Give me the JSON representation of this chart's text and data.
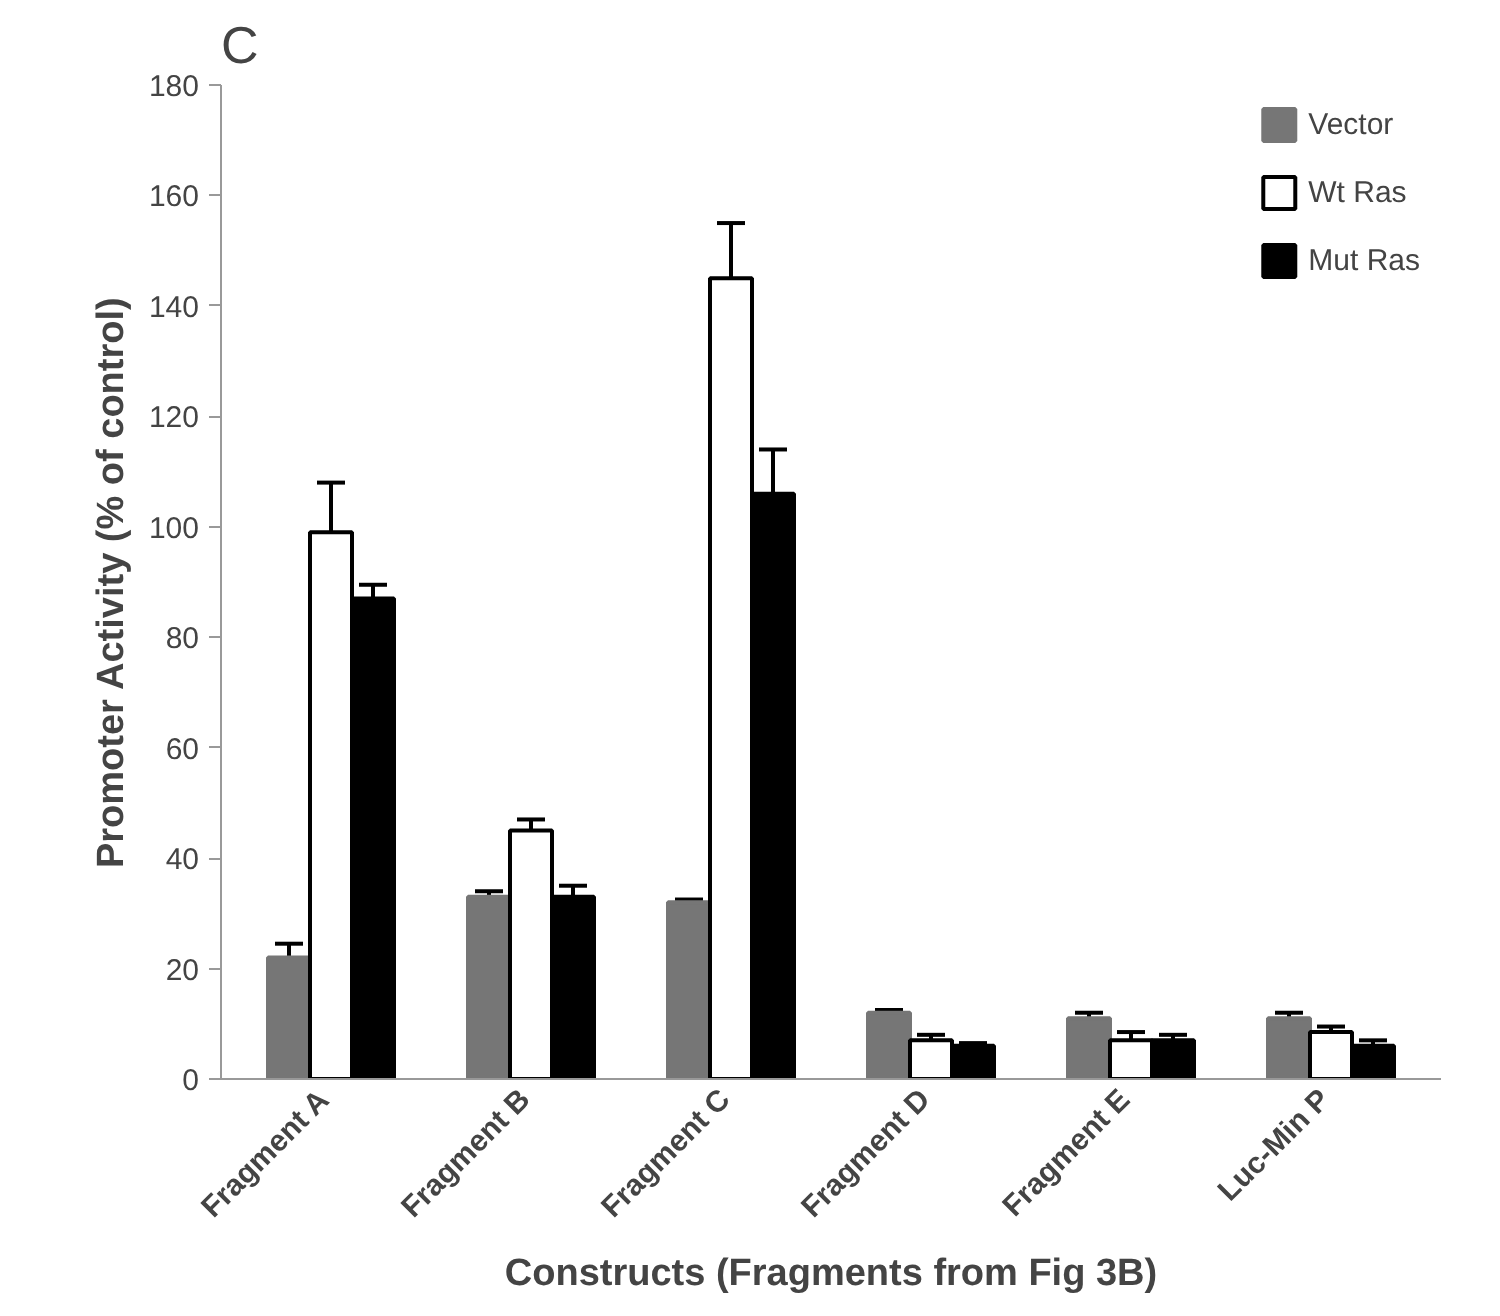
{
  "chart_data": {
    "type": "bar",
    "title": "C",
    "xlabel": "Constructs (Fragments from Fig 3B)",
    "ylabel": "Promoter Activity (% of control)",
    "categories": [
      "Fragment  A",
      "Fragment  B",
      "Fragment  C",
      "Fragment  D",
      "Fragment  E",
      "Luc-Min  P"
    ],
    "series": [
      {
        "name": "Vector",
        "color": "#767676",
        "values": [
          22,
          33,
          32,
          12,
          11,
          11
        ],
        "errors": [
          2.5,
          1,
          0.5,
          0.5,
          1,
          1
        ]
      },
      {
        "name": "Wt Ras",
        "color": "#ffffff",
        "values": [
          99,
          45,
          145,
          7,
          7,
          8.5
        ],
        "errors": [
          9,
          2,
          10,
          1,
          1.5,
          1
        ]
      },
      {
        "name": "Mut Ras",
        "color": "#000000",
        "values": [
          87,
          33,
          106,
          6,
          7,
          6
        ],
        "errors": [
          2.5,
          2,
          8,
          0.5,
          1,
          1
        ]
      }
    ],
    "ylim": [
      0,
      180
    ],
    "yticks": [
      0,
      20,
      40,
      60,
      80,
      100,
      120,
      140,
      160,
      180
    ],
    "grid": false,
    "legend": "top right"
  }
}
